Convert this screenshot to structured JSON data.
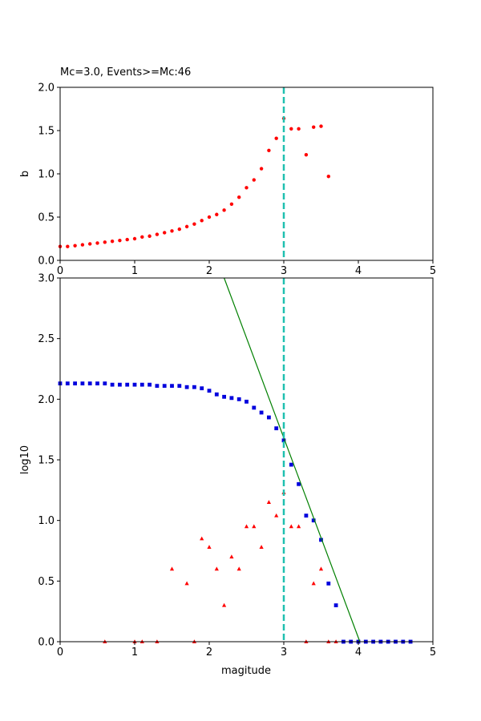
{
  "chart_data": [
    {
      "type": "scatter",
      "title": "Mc=3.0, Events>=Mc:46",
      "xlabel": "",
      "ylabel": "b",
      "xlim": [
        0,
        5
      ],
      "ylim": [
        0,
        2.0
      ],
      "xticks": [
        "0",
        "1",
        "2",
        "3",
        "4",
        "5"
      ],
      "yticks": [
        "0.0",
        "0.5",
        "1.0",
        "1.5",
        "2.0"
      ],
      "grid": false,
      "legend": "none",
      "series": [
        {
          "marker": "circle",
          "color": "#ff0000",
          "x": [
            0.0,
            0.1,
            0.2,
            0.3,
            0.4,
            0.5,
            0.6,
            0.7,
            0.8,
            0.9,
            1.0,
            1.1,
            1.2,
            1.3,
            1.4,
            1.5,
            1.6,
            1.7,
            1.8,
            1.9,
            2.0,
            2.1,
            2.2,
            2.3,
            2.4,
            2.5,
            2.6,
            2.7,
            2.8,
            2.9,
            3.0,
            3.1,
            3.2,
            3.3,
            3.4,
            3.5,
            3.6
          ],
          "y": [
            0.16,
            0.16,
            0.17,
            0.18,
            0.19,
            0.2,
            0.21,
            0.22,
            0.23,
            0.24,
            0.25,
            0.27,
            0.28,
            0.3,
            0.32,
            0.34,
            0.36,
            0.39,
            0.42,
            0.46,
            0.5,
            0.53,
            0.58,
            0.65,
            0.73,
            0.84,
            0.93,
            1.06,
            1.27,
            1.41,
            1.64,
            1.52,
            1.52,
            1.22,
            1.54,
            1.55,
            0.97
          ]
        }
      ],
      "vline": {
        "x": 3.0,
        "color": "#1fc0b0",
        "style": "dashed"
      }
    },
    {
      "type": "scatter",
      "title": "",
      "xlabel": "magitude",
      "ylabel": "log10",
      "xlim": [
        0,
        5
      ],
      "ylim": [
        0,
        3.0
      ],
      "xticks": [
        "0",
        "1",
        "2",
        "3",
        "4",
        "5"
      ],
      "yticks": [
        "0.0",
        "0.5",
        "1.0",
        "1.5",
        "2.0",
        "2.5",
        "3.0"
      ],
      "grid": false,
      "legend": "none",
      "series": [
        {
          "marker": "square",
          "color": "#0000dd",
          "x": [
            0.0,
            0.1,
            0.2,
            0.3,
            0.4,
            0.5,
            0.6,
            0.7,
            0.8,
            0.9,
            1.0,
            1.1,
            1.2,
            1.3,
            1.4,
            1.5,
            1.6,
            1.7,
            1.8,
            1.9,
            2.0,
            2.1,
            2.2,
            2.3,
            2.4,
            2.5,
            2.6,
            2.7,
            2.8,
            2.9,
            3.0,
            3.1,
            3.2,
            3.3,
            3.4,
            3.5,
            3.6,
            3.7,
            3.8,
            3.9,
            4.0,
            4.1,
            4.2,
            4.3,
            4.4,
            4.5,
            4.6,
            4.7
          ],
          "y": [
            2.13,
            2.13,
            2.13,
            2.13,
            2.13,
            2.13,
            2.13,
            2.12,
            2.12,
            2.12,
            2.12,
            2.12,
            2.12,
            2.11,
            2.11,
            2.11,
            2.11,
            2.1,
            2.1,
            2.09,
            2.07,
            2.04,
            2.02,
            2.01,
            2.0,
            1.98,
            1.93,
            1.89,
            1.85,
            1.76,
            1.66,
            1.46,
            1.3,
            1.04,
            1.0,
            0.84,
            0.48,
            0.3,
            0.0,
            0.0,
            0.0,
            0.0,
            0.0,
            0.0,
            0.0,
            0.0,
            0.0,
            0.0
          ]
        },
        {
          "marker": "triangle",
          "color": "#ff0000",
          "x": [
            0.6,
            1.0,
            1.1,
            1.3,
            1.5,
            1.7,
            1.8,
            1.9,
            2.0,
            2.1,
            2.2,
            2.3,
            2.4,
            2.5,
            2.6,
            2.7,
            2.8,
            2.9,
            3.0,
            3.1,
            3.2,
            3.3,
            3.4,
            3.5,
            3.6,
            3.7
          ],
          "y": [
            0.0,
            0.0,
            0.0,
            0.0,
            0.6,
            0.48,
            0.0,
            0.85,
            0.78,
            0.6,
            0.3,
            0.7,
            0.6,
            0.95,
            0.95,
            0.78,
            1.15,
            1.04,
            1.23,
            0.95,
            0.95,
            0.0,
            0.48,
            0.6,
            0.0,
            0.0
          ]
        }
      ],
      "fit_line": {
        "x": [
          2.2,
          4.02
        ],
        "y": [
          3.0,
          0.0
        ],
        "color": "#008000"
      },
      "vline": {
        "x": 3.0,
        "color": "#1fc0b0",
        "style": "dashed"
      }
    }
  ]
}
